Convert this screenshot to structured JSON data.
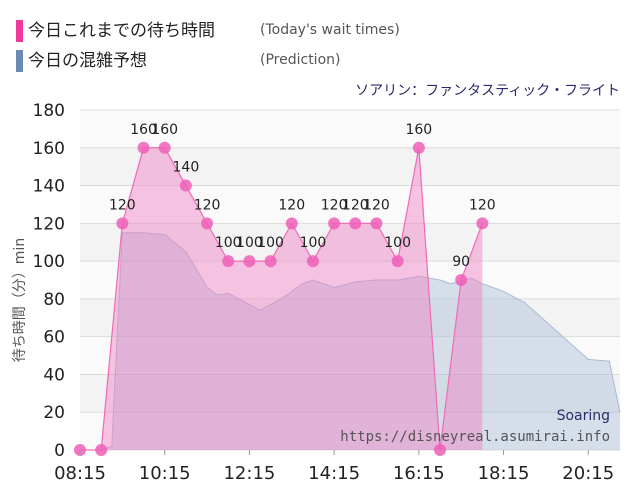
{
  "legend": {
    "today_label": "今日これまでの待ち時間",
    "today_note": "(Today's wait times)",
    "today_color": "#ee3b9a",
    "pred_label": "今日の混雑予想",
    "pred_note": "(Prediction)",
    "pred_color": "#6a89b3"
  },
  "attraction_title": "ソアリン：ファンタスティック・フライト",
  "watermark": {
    "name": "Soaring",
    "url": "https://disneyreal.asumirai.info"
  },
  "chart_data": {
    "type": "area",
    "title": "",
    "xlabel": "",
    "ylabel": "待ち時間（分）min",
    "ylim": [
      0,
      180
    ],
    "y_ticks": [
      0,
      20,
      40,
      60,
      80,
      100,
      120,
      140,
      160,
      180
    ],
    "xlim": [
      "08:15",
      "21:00"
    ],
    "x_ticks": [
      "08:15",
      "10:15",
      "12:15",
      "14:15",
      "16:15",
      "18:15",
      "20:15"
    ],
    "grid": true,
    "series": [
      {
        "name": "今日の混雑予想",
        "color": "#6a89b3",
        "points": [
          [
            "08:15",
            0
          ],
          [
            "08:45",
            0
          ],
          [
            "09:00",
            2
          ],
          [
            "09:15",
            115
          ],
          [
            "09:45",
            115
          ],
          [
            "10:15",
            114
          ],
          [
            "10:45",
            105
          ],
          [
            "11:15",
            86
          ],
          [
            "11:30",
            82
          ],
          [
            "11:45",
            83
          ],
          [
            "12:15",
            77
          ],
          [
            "12:30",
            74
          ],
          [
            "13:00",
            80
          ],
          [
            "13:30",
            88
          ],
          [
            "13:45",
            90
          ],
          [
            "14:15",
            86
          ],
          [
            "14:45",
            89
          ],
          [
            "15:15",
            90
          ],
          [
            "15:45",
            90
          ],
          [
            "16:15",
            92
          ],
          [
            "16:45",
            90
          ],
          [
            "17:00",
            88
          ],
          [
            "17:30",
            91
          ],
          [
            "17:45",
            88
          ],
          [
            "18:15",
            84
          ],
          [
            "18:45",
            78
          ],
          [
            "19:15",
            68
          ],
          [
            "19:45",
            58
          ],
          [
            "20:15",
            48
          ],
          [
            "20:45",
            47
          ],
          [
            "21:00",
            20
          ]
        ]
      },
      {
        "name": "今日これまでの待ち時間",
        "color": "#ee3b9a",
        "points": [
          [
            "08:15",
            0
          ],
          [
            "08:45",
            0
          ],
          [
            "09:15",
            120
          ],
          [
            "09:45",
            160
          ],
          [
            "10:15",
            160
          ],
          [
            "10:45",
            140
          ],
          [
            "11:15",
            120
          ],
          [
            "11:45",
            100
          ],
          [
            "12:15",
            100
          ],
          [
            "12:45",
            100
          ],
          [
            "13:15",
            120
          ],
          [
            "13:45",
            100
          ],
          [
            "14:15",
            120
          ],
          [
            "14:45",
            120
          ],
          [
            "15:15",
            120
          ],
          [
            "15:45",
            100
          ],
          [
            "16:15",
            160
          ],
          [
            "16:45",
            0
          ],
          [
            "17:15",
            90
          ],
          [
            "17:45",
            120
          ]
        ]
      }
    ]
  }
}
